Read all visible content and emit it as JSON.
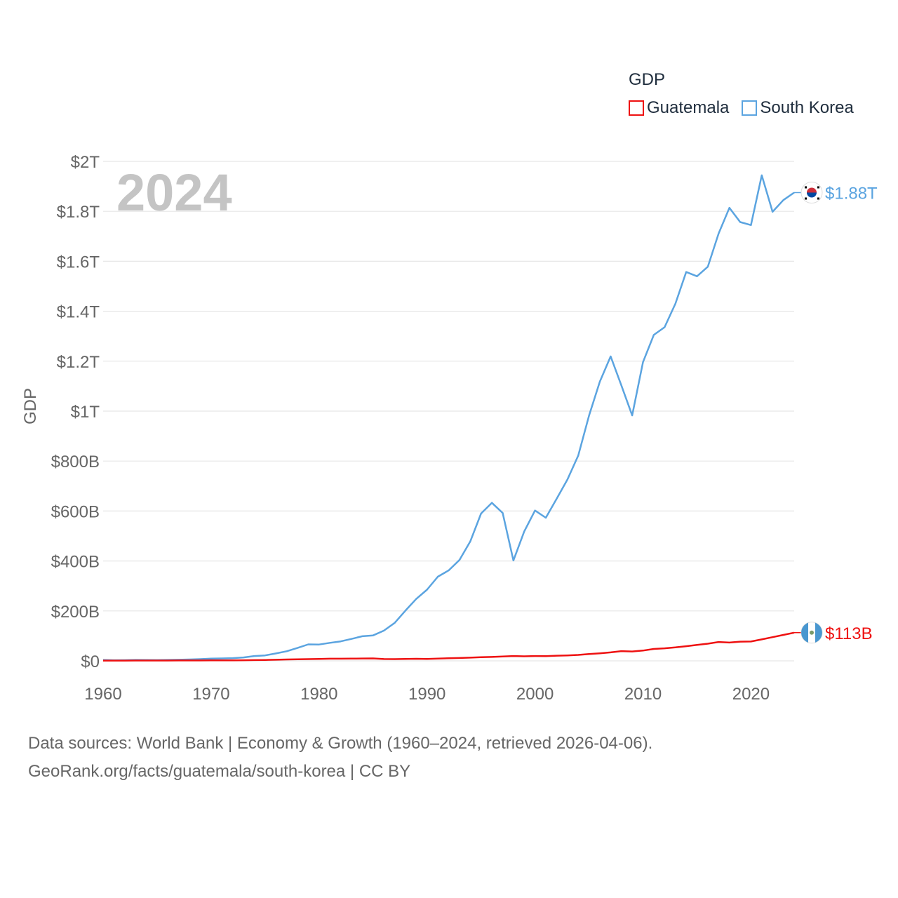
{
  "legend": {
    "title": "GDP",
    "items": [
      {
        "label": "Guatemala",
        "color": "#ee1111"
      },
      {
        "label": "South Korea",
        "color": "#5ba4e0"
      }
    ]
  },
  "sources": {
    "line1": "Data sources: World Bank | Economy & Growth (1960–2024, retrieved 2026-04-06).",
    "line2": "GeoRank.org/facts/guatemala/south-korea | CC BY"
  },
  "chart_data": {
    "type": "line",
    "title": "GDP",
    "year_label": "2024",
    "xlabel": "",
    "ylabel": "GDP",
    "xlim": [
      1960,
      2024
    ],
    "ylim": [
      0,
      2000
    ],
    "y_unit": "billion USD",
    "x_ticks": [
      "1960",
      "1970",
      "1980",
      "1990",
      "2000",
      "2010",
      "2020"
    ],
    "y_ticks": [
      {
        "value": 0,
        "label": "$0"
      },
      {
        "value": 200,
        "label": "$200B"
      },
      {
        "value": 400,
        "label": "$400B"
      },
      {
        "value": 600,
        "label": "$600B"
      },
      {
        "value": 800,
        "label": "$800B"
      },
      {
        "value": 1000,
        "label": "$1T"
      },
      {
        "value": 1200,
        "label": "$1.2T"
      },
      {
        "value": 1400,
        "label": "$1.4T"
      },
      {
        "value": 1600,
        "label": "$1.6T"
      },
      {
        "value": 1800,
        "label": "$1.8T"
      },
      {
        "value": 2000,
        "label": "$2T"
      }
    ],
    "grid": true,
    "series": [
      {
        "name": "South Korea",
        "color": "#5ba4e0",
        "end_label": "$1.88T",
        "x": [
          1960,
          1961,
          1962,
          1963,
          1964,
          1965,
          1966,
          1967,
          1968,
          1969,
          1970,
          1971,
          1972,
          1973,
          1974,
          1975,
          1976,
          1977,
          1978,
          1979,
          1980,
          1981,
          1982,
          1983,
          1984,
          1985,
          1986,
          1987,
          1988,
          1989,
          1990,
          1991,
          1992,
          1993,
          1994,
          1995,
          1996,
          1997,
          1998,
          1999,
          2000,
          2001,
          2002,
          2003,
          2004,
          2005,
          2006,
          2007,
          2008,
          2009,
          2010,
          2011,
          2012,
          2013,
          2014,
          2015,
          2016,
          2017,
          2018,
          2019,
          2020,
          2021,
          2022,
          2023,
          2024
        ],
        "values": [
          4,
          2.4,
          2.8,
          3.9,
          3.5,
          3.1,
          3.8,
          4.6,
          5.6,
          7.1,
          9,
          9.9,
          10.9,
          13.9,
          19.4,
          21.8,
          29.8,
          38.4,
          51.8,
          65.9,
          65.4,
          72.2,
          78.2,
          88,
          98.5,
          102,
          121,
          152,
          201,
          248,
          285,
          337,
          362,
          404,
          478,
          590,
          633,
          592,
          402,
          518,
          602,
          573,
          649,
          726,
          822,
          982,
          1118,
          1219,
          1102,
          983,
          1196,
          1305,
          1336,
          1430,
          1557,
          1540,
          1578,
          1711,
          1814,
          1757,
          1745,
          1944,
          1798,
          1845,
          1875
        ]
      },
      {
        "name": "Guatemala",
        "color": "#ee1111",
        "end_label": "$113B",
        "x": [
          1960,
          1961,
          1962,
          1963,
          1964,
          1965,
          1966,
          1967,
          1968,
          1969,
          1970,
          1971,
          1972,
          1973,
          1974,
          1975,
          1976,
          1977,
          1978,
          1979,
          1980,
          1981,
          1982,
          1983,
          1984,
          1985,
          1986,
          1987,
          1988,
          1989,
          1990,
          1991,
          1992,
          1993,
          1994,
          1995,
          1996,
          1997,
          1998,
          1999,
          2000,
          2001,
          2002,
          2003,
          2004,
          2005,
          2006,
          2007,
          2008,
          2009,
          2010,
          2011,
          2012,
          2013,
          2014,
          2015,
          2016,
          2017,
          2018,
          2019,
          2020,
          2021,
          2022,
          2023,
          2024
        ],
        "values": [
          1,
          1.1,
          1.2,
          1.3,
          1.3,
          1.4,
          1.5,
          1.6,
          1.7,
          1.8,
          1.9,
          2,
          2.1,
          2.6,
          3.2,
          3.6,
          4.4,
          5.5,
          6.1,
          6.9,
          7.9,
          8.6,
          8.7,
          9,
          9.5,
          9.9,
          7.2,
          7.1,
          7.8,
          8.4,
          7.6,
          9.4,
          10.4,
          11.4,
          12.9,
          14.7,
          15.8,
          17.8,
          19.4,
          18.3,
          19.3,
          18.7,
          20.8,
          21.9,
          23.9,
          27.2,
          30.2,
          34.1,
          39.1,
          37.7,
          41.3,
          47.7,
          50.4,
          53.9,
          58.8,
          63.8,
          68.7,
          75.6,
          73.3,
          77,
          77.6,
          86,
          95,
          104,
          113
        ]
      }
    ]
  }
}
